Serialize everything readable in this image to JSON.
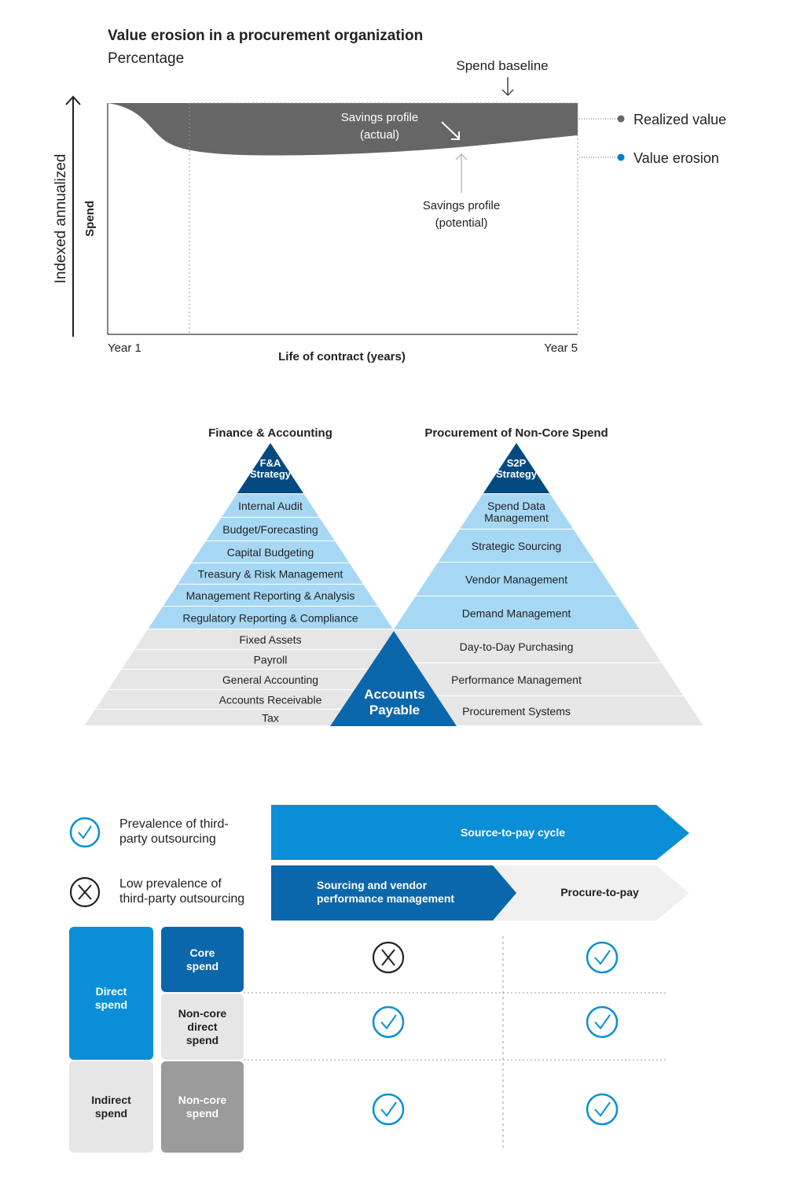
{
  "chart": {
    "title": "Value erosion in a procurement organization",
    "subtitle": "Percentage",
    "y_label_outer": "Indexed annualized",
    "y_label_inner": "Spend",
    "x_label": "Life of contract (years)",
    "x_start": "Year 1",
    "x_end": "Year 5",
    "spend_baseline": "Spend baseline",
    "savings_actual": [
      "Savings profile",
      "(actual)"
    ],
    "savings_potential": [
      "Savings profile",
      "(potential)"
    ],
    "legend": [
      {
        "label": "Realized value",
        "color": "#666666"
      },
      {
        "label": "Value erosion",
        "color": "#0080c6"
      }
    ]
  },
  "pyramids": {
    "left": {
      "title": "Finance & Accounting",
      "apex": [
        "F&A",
        "Strategy"
      ],
      "blue_levels": [
        "Internal Audit",
        "Budget/Forecasting",
        "Capital Budgeting",
        "Treasury & Risk Management",
        "Management Reporting & Analysis",
        "Regulatory Reporting & Compliance"
      ],
      "gray_levels": [
        "Fixed Assets",
        "Payroll",
        "General Accounting",
        "Accounts Receivable",
        "Tax"
      ]
    },
    "right": {
      "title": "Procurement of Non-Core Spend",
      "apex": [
        "S2P",
        "Strategy"
      ],
      "blue_levels": [
        [
          "Spend Data",
          "Management"
        ],
        [
          "Strategic Sourcing"
        ],
        [
          "Vendor Management"
        ],
        [
          "Demand Management"
        ]
      ],
      "gray_levels": [
        "Day-to-Day Purchasing",
        "Performance Management",
        "Procurement Systems"
      ]
    },
    "shared": [
      "Accounts",
      "Payable"
    ],
    "colors": {
      "dark": "#034a80",
      "blue": "#a6d8f5",
      "gray": "#e6e6e6",
      "shared": "#0b67ab"
    }
  },
  "matrix": {
    "legend": [
      {
        "icon": "check-circle-icon",
        "label": "Prevalence of third-\nparty outsourcing"
      },
      {
        "icon": "x-circle-icon",
        "label": "Low prevalence of\nthird-party outsourcing"
      }
    ],
    "cycle": "Source-to-pay cycle",
    "columns": [
      "Sourcing and vendor\nperformance management",
      "Procure-to-pay"
    ],
    "spend_groups": [
      "Direct\nspend",
      "Indirect\nspend"
    ],
    "rows": [
      {
        "label": "Core\nspend",
        "cells": [
          "x",
          "check"
        ]
      },
      {
        "label": "Non-core\ndirect\nspend",
        "cells": [
          "check",
          "check"
        ]
      },
      {
        "label": "Non-core\nspend",
        "cells": [
          "check",
          "check"
        ]
      }
    ]
  }
}
